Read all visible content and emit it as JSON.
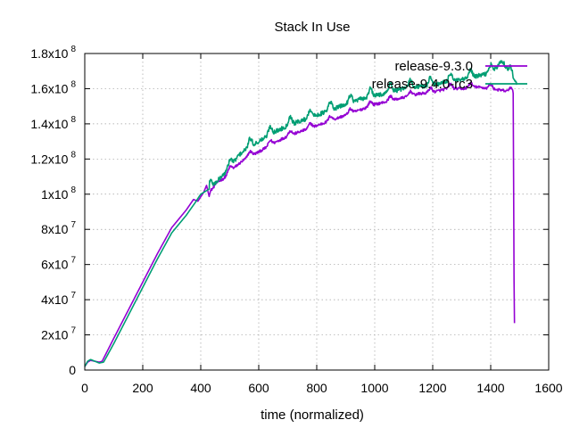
{
  "chart_data": {
    "type": "line",
    "title": "Stack In Use",
    "xlabel": "time (normalized)",
    "ylabel": "",
    "xlim": [
      0,
      1600
    ],
    "ylim": [
      0,
      180000000
    ],
    "x_ticks": [
      0,
      200,
      400,
      600,
      800,
      1000,
      1200,
      1400,
      1600
    ],
    "x_tick_labels": [
      "0",
      "200",
      "400",
      "600",
      "800",
      "1000",
      "1200",
      "1400",
      "1600"
    ],
    "y_ticks": [
      0,
      20000000,
      40000000,
      60000000,
      80000000,
      100000000,
      120000000,
      140000000,
      160000000,
      180000000
    ],
    "y_tick_labels": [
      {
        "base": "0",
        "exp": ""
      },
      {
        "base": "2x10",
        "exp": "7"
      },
      {
        "base": "4x10",
        "exp": "7"
      },
      {
        "base": "6x10",
        "exp": "7"
      },
      {
        "base": "8x10",
        "exp": "7"
      },
      {
        "base": "1x10",
        "exp": "8"
      },
      {
        "base": "1.2x10",
        "exp": "8"
      },
      {
        "base": "1.4x10",
        "exp": "8"
      },
      {
        "base": "1.6x10",
        "exp": "8"
      },
      {
        "base": "1.8x10",
        "exp": "8"
      }
    ],
    "grid": true,
    "legend_position": "top-right",
    "series": [
      {
        "name": "release-9.3.0",
        "color": "#9400d3",
        "points": [
          [
            0,
            2000000
          ],
          [
            10,
            4500000
          ],
          [
            20,
            5500000
          ],
          [
            35,
            5000000
          ],
          [
            50,
            4500000
          ],
          [
            60,
            5000000
          ],
          [
            100,
            18000000
          ],
          [
            150,
            34000000
          ],
          [
            200,
            50000000
          ],
          [
            250,
            66000000
          ],
          [
            300,
            81000000
          ],
          [
            350,
            91000000
          ],
          [
            375,
            97000000
          ],
          [
            390,
            96000000
          ],
          [
            410,
            101000000
          ],
          [
            420,
            105000000
          ],
          [
            430,
            98000000
          ],
          [
            450,
            106000000
          ],
          [
            480,
            109000000
          ],
          [
            500,
            113000000
          ],
          [
            530,
            117000000
          ],
          [
            560,
            121000000
          ],
          [
            600,
            124000000
          ],
          [
            650,
            129000000
          ],
          [
            700,
            133000000
          ],
          [
            750,
            136000000
          ],
          [
            800,
            139000000
          ],
          [
            850,
            142000000
          ],
          [
            900,
            145000000
          ],
          [
            950,
            148000000
          ],
          [
            1000,
            151000000
          ],
          [
            1050,
            153000000
          ],
          [
            1100,
            155000000
          ],
          [
            1150,
            157000000
          ],
          [
            1200,
            158000000
          ],
          [
            1250,
            160000000
          ],
          [
            1300,
            160000000
          ],
          [
            1350,
            161000000
          ],
          [
            1400,
            160000000
          ],
          [
            1440,
            159000000
          ],
          [
            1470,
            158000000
          ],
          [
            1478,
            157000000
          ],
          [
            1480,
            60000000
          ],
          [
            1483,
            10000000
          ]
        ]
      },
      {
        "name": "release-9.4.0-rc3",
        "color": "#009e73",
        "points": [
          [
            0,
            2000000
          ],
          [
            10,
            5000000
          ],
          [
            20,
            6000000
          ],
          [
            35,
            5000000
          ],
          [
            50,
            4000000
          ],
          [
            65,
            4500000
          ],
          [
            100,
            15000000
          ],
          [
            150,
            31000000
          ],
          [
            200,
            47000000
          ],
          [
            250,
            63000000
          ],
          [
            300,
            78000000
          ],
          [
            350,
            88000000
          ],
          [
            380,
            95000000
          ],
          [
            400,
            100000000
          ],
          [
            430,
            103000000
          ],
          [
            460,
            108000000
          ],
          [
            500,
            115000000
          ],
          [
            530,
            122000000
          ],
          [
            560,
            126000000
          ],
          [
            600,
            130000000
          ],
          [
            650,
            135000000
          ],
          [
            700,
            139000000
          ],
          [
            750,
            142000000
          ],
          [
            800,
            145000000
          ],
          [
            850,
            148000000
          ],
          [
            900,
            151000000
          ],
          [
            950,
            154000000
          ],
          [
            1000,
            156000000
          ],
          [
            1050,
            158000000
          ],
          [
            1100,
            160000000
          ],
          [
            1150,
            161000000
          ],
          [
            1200,
            162000000
          ],
          [
            1250,
            164000000
          ],
          [
            1300,
            165000000
          ],
          [
            1350,
            167000000
          ],
          [
            1400,
            169000000
          ],
          [
            1420,
            172000000
          ],
          [
            1440,
            176000000
          ],
          [
            1460,
            170000000
          ],
          [
            1480,
            165000000
          ],
          [
            1490,
            163000000
          ]
        ]
      }
    ]
  }
}
